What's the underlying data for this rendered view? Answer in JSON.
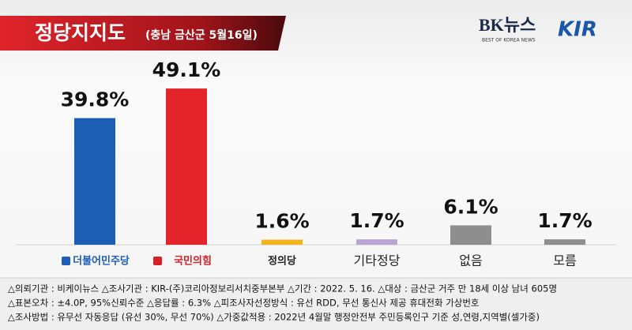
{
  "chart_data": {
    "type": "bar",
    "title": "정당지지도",
    "subtitle": "(충남 금산군 5월16일)",
    "categories": [
      "더불어민주당",
      "국민의힘",
      "정의당",
      "기타정당",
      "없음",
      "모름"
    ],
    "values": [
      39.8,
      49.1,
      1.6,
      1.7,
      6.1,
      1.7
    ],
    "value_labels": [
      "39.8%",
      "49.1%",
      "1.6%",
      "1.7%",
      "6.1%",
      "1.7%"
    ],
    "colors": [
      "#1d5eb5",
      "#e3242b",
      "#f2b31d",
      "#b9a5d4",
      "#8e8e8e",
      "#8e8e8e"
    ],
    "label_colors": [
      "#1d5eb5",
      "#d61f26",
      "#222222",
      "#222222",
      "#222222",
      "#222222"
    ]
  },
  "logos": {
    "source": "BK뉴스",
    "source_tagline": "BEST OF KOREA NEWS",
    "partner": "KIR"
  },
  "notes": [
    "△의뢰기관 : 비케이뉴스   △조사기관 : KIR-(주)코리아정보리서치중부본부   △기간 : 2022. 5. 16.   △대상 : 금산군 거주 만 18세 이상 남녀 605명",
    "△표본오차 : ±4.0P, 95%신뢰수준   △응답률 : 6.3%   △피조사자선정방식 : 유선 RDD, 무선 통신사 제공 휴대전화 가상번호",
    "△조사방법 : 유무선 자동응답 (유선 30%, 무선 70%)   △가중값적용 : 2022년 4월말 행정안전부 주민등록인구 기준 성,연령,지역별(셀가중)"
  ]
}
